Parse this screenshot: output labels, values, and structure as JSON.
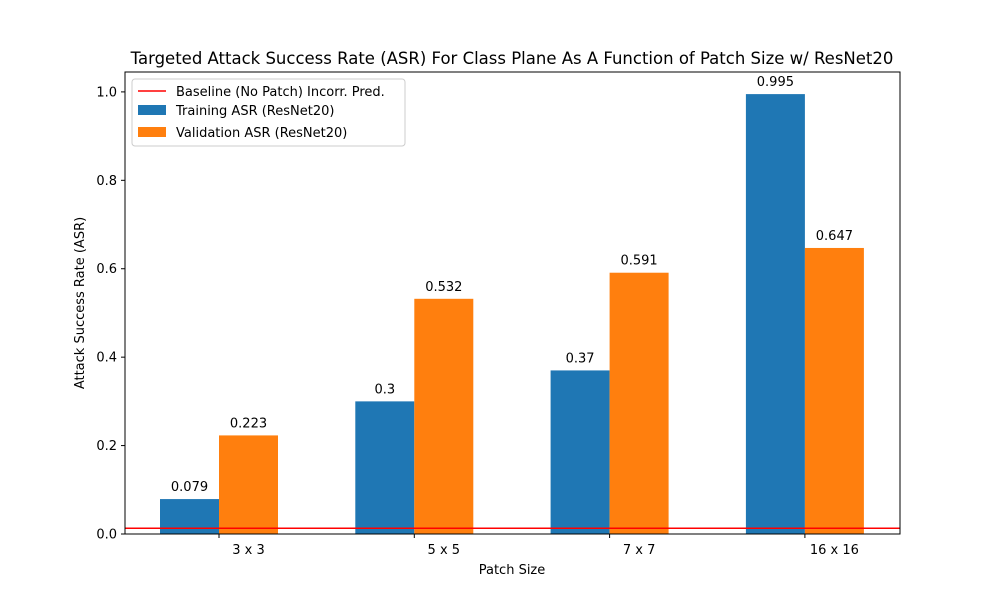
{
  "chart_data": {
    "type": "bar",
    "title": "Targeted Attack Success Rate (ASR) For Class Plane As A Function of Patch Size w/ ResNet20",
    "xlabel": "Patch Size",
    "ylabel": "Attack Success Rate (ASR)",
    "categories": [
      "3 x 3",
      "5 x 5",
      "7 x 7",
      "16 x 16"
    ],
    "series": [
      {
        "name": "Training ASR (ResNet20)",
        "values": [
          0.079,
          0.3,
          0.37,
          0.995
        ],
        "labels": [
          "0.079",
          "0.3",
          "0.37",
          "0.995"
        ],
        "color": "#1f77b4"
      },
      {
        "name": "Validation ASR (ResNet20)",
        "values": [
          0.223,
          0.532,
          0.591,
          0.647
        ],
        "labels": [
          "0.223",
          "0.532",
          "0.591",
          "0.647"
        ],
        "color": "#ff7f0e"
      }
    ],
    "baseline": {
      "name": "Baseline (No Patch) Incorr. Pred.",
      "value": 0.013,
      "color": "#ff0000"
    },
    "ylim": [
      0,
      1.045
    ],
    "yticks": [
      0.0,
      0.2,
      0.4,
      0.6,
      0.8,
      1.0
    ],
    "ytick_labels": [
      "0.0",
      "0.2",
      "0.4",
      "0.6",
      "0.8",
      "1.0"
    ],
    "grid": false,
    "legend_position": "top-left"
  }
}
